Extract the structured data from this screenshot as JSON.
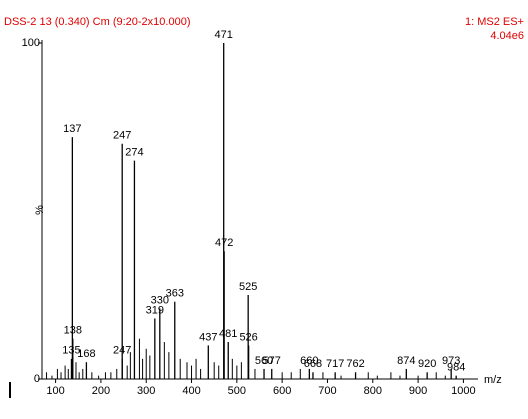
{
  "chart_data": {
    "type": "spectrum",
    "title": "DSS-2 13 (0.340) Cm (9:20-2x10.000)",
    "subtitle": "1: MS2 ES+",
    "scale_note": "4.04e6",
    "xlabel": "m/z",
    "ylabel": "%",
    "color": "#000000",
    "x": [
      135,
      137,
      138,
      168,
      247,
      247,
      274,
      319,
      330,
      363,
      437,
      471,
      472,
      481,
      525,
      526,
      560,
      577,
      660,
      668,
      717,
      762,
      874,
      920,
      973,
      984
    ],
    "values": [
      6,
      72,
      12,
      5,
      6,
      70,
      65,
      18,
      21,
      23,
      10,
      100,
      38,
      11,
      25,
      10,
      3,
      3,
      3,
      2,
      2,
      2,
      3,
      2,
      3,
      1
    ],
    "noise_x": [
      80,
      92,
      104,
      112,
      121,
      128,
      145,
      152,
      160,
      180,
      195,
      210,
      222,
      235,
      258,
      265,
      285,
      292,
      300,
      308,
      340,
      350,
      375,
      390,
      400,
      410,
      420,
      450,
      460,
      490,
      500,
      510,
      540,
      600,
      620,
      640,
      690,
      730,
      790,
      810,
      840,
      860,
      900,
      940,
      960
    ],
    "noise_values": [
      2,
      1,
      3,
      2,
      4,
      3,
      5,
      2,
      3,
      2,
      1,
      2,
      2,
      3,
      4,
      8,
      12,
      6,
      9,
      7,
      11,
      8,
      6,
      5,
      4,
      6,
      3,
      5,
      4,
      6,
      4,
      5,
      3,
      2,
      2,
      3,
      2,
      1,
      2,
      1,
      2,
      1,
      1,
      2,
      1
    ],
    "xlim": [
      70,
      1030
    ],
    "ylim": [
      0,
      100
    ],
    "xticks": [
      100,
      200,
      300,
      400,
      500,
      600,
      700,
      800,
      900,
      1000
    ],
    "yticks": [
      0,
      100
    ]
  }
}
